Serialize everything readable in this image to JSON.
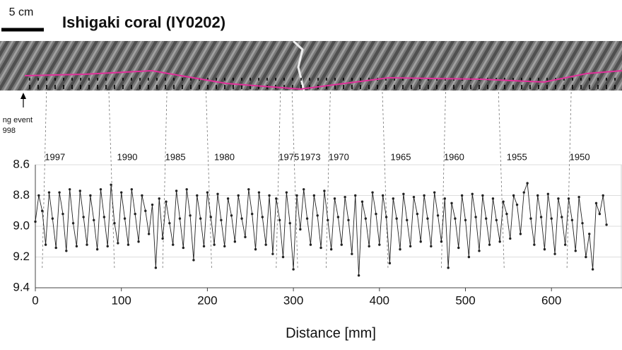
{
  "chart_data": {
    "type": "line",
    "title": "Ishigaki coral (IY0202)",
    "scale_label": "5 cm",
    "event_label": [
      "ng event",
      "998"
    ],
    "x_label": "Distance [mm]",
    "xlim": [
      0,
      682
    ],
    "xticks": [
      0,
      100,
      200,
      300,
      400,
      500,
      600
    ],
    "ylim": [
      8.6,
      9.4
    ],
    "y_inverted": true,
    "yticks": [
      8.6,
      8.8,
      {
        "value": 9,
        "label": "9.0"
      },
      9.2,
      9.4
    ],
    "grid": true,
    "year_markers": [
      {
        "label": "1997",
        "x": 8
      },
      {
        "label": "1990",
        "x": 92
      },
      {
        "label": "1985",
        "x": 148
      },
      {
        "label": "1980",
        "x": 205
      },
      {
        "label": "1975",
        "x": 280
      },
      {
        "label": "1973",
        "x": 305
      },
      {
        "label": "1970",
        "x": 338
      },
      {
        "label": "1965",
        "x": 410
      },
      {
        "label": "1960",
        "x": 472
      },
      {
        "label": "1955",
        "x": 545
      },
      {
        "label": "1950",
        "x": 618
      }
    ],
    "series": [
      {
        "color": "#222222",
        "x": [
          0,
          4,
          8,
          12,
          16,
          20,
          24,
          28,
          32,
          36,
          40,
          44,
          48,
          52,
          56,
          60,
          64,
          68,
          72,
          76,
          80,
          84,
          88,
          92,
          96,
          100,
          104,
          108,
          112,
          116,
          120,
          124,
          128,
          132,
          136,
          140,
          144,
          148,
          152,
          156,
          160,
          164,
          168,
          172,
          176,
          180,
          184,
          188,
          192,
          196,
          200,
          204,
          208,
          212,
          216,
          220,
          224,
          228,
          232,
          236,
          240,
          244,
          248,
          252,
          256,
          260,
          264,
          268,
          272,
          276,
          280,
          284,
          288,
          292,
          296,
          300,
          304,
          308,
          312,
          316,
          320,
          324,
          328,
          332,
          336,
          340,
          344,
          348,
          352,
          356,
          360,
          364,
          368,
          372,
          376,
          380,
          384,
          388,
          392,
          396,
          400,
          404,
          408,
          412,
          416,
          420,
          424,
          428,
          432,
          436,
          440,
          444,
          448,
          452,
          456,
          460,
          464,
          468,
          472,
          476,
          480,
          484,
          488,
          492,
          496,
          500,
          504,
          508,
          512,
          516,
          520,
          524,
          528,
          532,
          536,
          540,
          544,
          548,
          552,
          556,
          560,
          564,
          568,
          572,
          576,
          580,
          584,
          588,
          592,
          596,
          600,
          604,
          608,
          612,
          616,
          620,
          624,
          628,
          632,
          636,
          640,
          644,
          648,
          652,
          656,
          660,
          664
        ],
        "values": [
          8.97,
          8.8,
          8.9,
          9.12,
          8.78,
          8.95,
          9.14,
          8.78,
          8.92,
          9.16,
          8.76,
          8.98,
          9.13,
          8.77,
          8.94,
          9.12,
          8.8,
          8.96,
          9.15,
          8.76,
          8.94,
          9.13,
          8.73,
          8.98,
          9.11,
          8.78,
          8.95,
          9.12,
          8.76,
          8.92,
          9.1,
          8.8,
          8.9,
          9.05,
          8.86,
          9.27,
          8.82,
          9.08,
          8.84,
          8.98,
          9.12,
          8.77,
          8.95,
          9.14,
          8.76,
          8.93,
          9.22,
          8.8,
          8.95,
          9.13,
          8.78,
          8.94,
          9.12,
          8.79,
          8.96,
          9.13,
          8.82,
          8.93,
          9.1,
          8.8,
          8.95,
          9.07,
          8.76,
          8.92,
          9.15,
          8.78,
          8.94,
          9.12,
          8.8,
          9.18,
          8.82,
          8.96,
          9.2,
          8.78,
          8.98,
          9.28,
          8.8,
          9.02,
          8.76,
          8.95,
          9.12,
          8.8,
          8.93,
          9.14,
          8.77,
          8.96,
          9.15,
          8.82,
          8.94,
          9.12,
          8.81,
          8.96,
          9.18,
          8.8,
          9.32,
          8.84,
          8.95,
          9.13,
          8.78,
          8.92,
          9.12,
          8.8,
          8.94,
          9.24,
          8.82,
          8.95,
          9.15,
          8.79,
          8.96,
          9.13,
          8.81,
          8.92,
          9.1,
          8.8,
          8.95,
          9.13,
          8.78,
          8.93,
          9.1,
          8.82,
          9.27,
          8.85,
          8.95,
          9.14,
          8.8,
          8.96,
          9.2,
          8.79,
          8.94,
          9.16,
          8.8,
          8.95,
          9.12,
          8.82,
          8.96,
          9.1,
          8.84,
          8.92,
          9.08,
          8.8,
          8.86,
          9.05,
          8.78,
          8.72,
          8.95,
          9.12,
          8.8,
          8.94,
          9.15,
          8.79,
          8.95,
          9.18,
          8.82,
          8.94,
          9.12,
          8.82,
          8.96,
          9.16,
          8.81,
          8.98,
          9.2,
          9.05,
          9.28,
          8.85,
          8.92,
          8.8,
          8.99
        ]
      }
    ]
  }
}
